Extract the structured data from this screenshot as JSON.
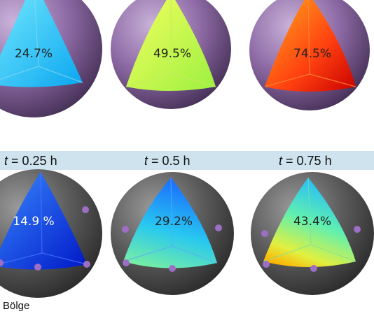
{
  "top_row": [
    {
      "label": "24.7%"
    },
    {
      "label": "49.5%"
    },
    {
      "label": "74.5%"
    }
  ],
  "time_band": [
    {
      "var": "t",
      "text": " = 0.25 h"
    },
    {
      "var": "t",
      "text": " = 0.5 h"
    },
    {
      "var": "t",
      "text": " = 0.75 h"
    }
  ],
  "bottom_row": [
    {
      "label": "14.9 %"
    },
    {
      "label": "29.2%"
    },
    {
      "label": "43.4%"
    }
  ],
  "caption": "Bölge",
  "colors": {
    "shell_top": "#8e6aa5",
    "shell_bottom": "#5b5b5b",
    "band": "#cfe3ee",
    "particle": "#9c6fc4"
  }
}
